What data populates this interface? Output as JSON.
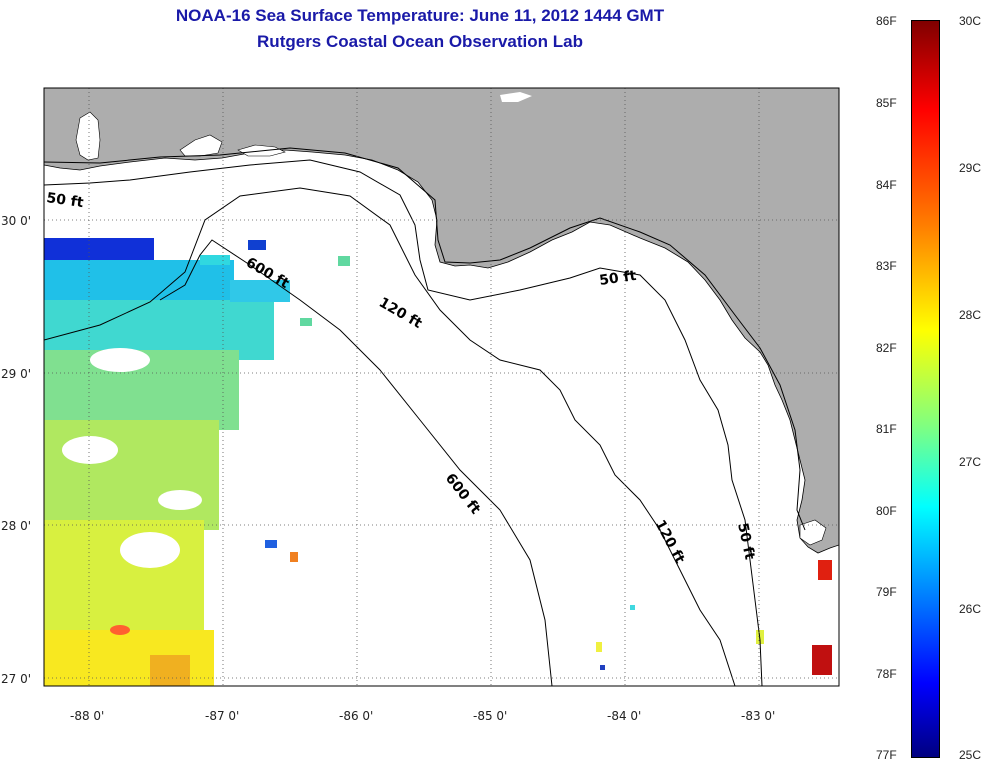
{
  "title_line1": "NOAA-16 Sea Surface Temperature:  June 11, 2012 1444 GMT",
  "title_line2": "Rutgers Coastal Ocean Observation Lab",
  "map": {
    "lon_range": [
      -88.35,
      -82.4
    ],
    "lat_range": [
      26.93,
      30.85
    ],
    "lon_ticks": [
      {
        "value": -88,
        "label": "-88 0'"
      },
      {
        "value": -87,
        "label": "-87 0'"
      },
      {
        "value": -86,
        "label": "-86 0'"
      },
      {
        "value": -85,
        "label": "-85 0'"
      },
      {
        "value": -84,
        "label": "-84 0'"
      },
      {
        "value": -83,
        "label": "-83 0'"
      }
    ],
    "lat_ticks": [
      {
        "value": 30,
        "label": "30 0'"
      },
      {
        "value": 29,
        "label": "29 0'"
      },
      {
        "value": 28,
        "label": "28 0'"
      },
      {
        "value": 27,
        "label": "27 0'"
      }
    ],
    "contour_labels": [
      "50 ft",
      "600 ft",
      "120 ft",
      "50 ft",
      "600 ft",
      "120 ft",
      "50 ft"
    ],
    "colors": {
      "land": "#adadad",
      "ocean": "#ffffff",
      "contour": "#000000",
      "grid": "#555555"
    }
  },
  "colorbar": {
    "fahrenheit": [
      "86F",
      "85F",
      "84F",
      "83F",
      "82F",
      "81F",
      "80F",
      "79F",
      "78F",
      "77F"
    ],
    "celsius": [
      "30C",
      "29C",
      "28C",
      "27C",
      "26C",
      "25C"
    ],
    "colors": [
      "#800000",
      "#ff0000",
      "#ff8000",
      "#ffff00",
      "#80ff80",
      "#00ffff",
      "#0080ff",
      "#0000ff",
      "#000080"
    ]
  }
}
